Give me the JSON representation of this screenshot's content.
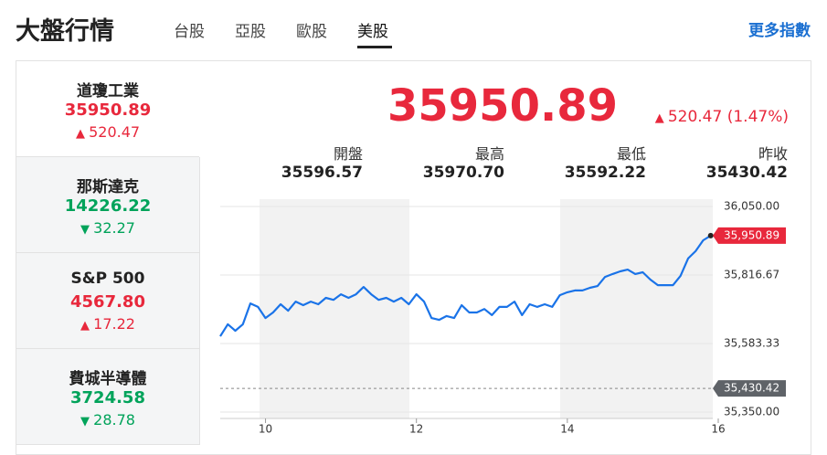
{
  "header": {
    "title": "大盤行情",
    "tabs": [
      "台股",
      "亞股",
      "歐股",
      "美股"
    ],
    "active_tab": 3,
    "more_link": "更多指數"
  },
  "index_list": [
    {
      "name": "道瓊工業",
      "value": "35950.89",
      "change": "520.47",
      "direction": "up"
    },
    {
      "name": "那斯達克",
      "value": "14226.22",
      "change": "32.27",
      "direction": "down"
    },
    {
      "name": "S&P 500",
      "value": "4567.80",
      "change": "17.22",
      "direction": "up"
    },
    {
      "name": "費城半導體",
      "value": "3724.58",
      "change": "28.78",
      "direction": "down"
    }
  ],
  "selected_index": 0,
  "summary": {
    "value": "35950.89",
    "change": "520.47 (1.47%)",
    "direction": "up",
    "stats": [
      {
        "label": "開盤",
        "value": "35596.57"
      },
      {
        "label": "最高",
        "value": "35970.70"
      },
      {
        "label": "最低",
        "value": "35592.22"
      },
      {
        "label": "昨收",
        "value": "35430.42"
      }
    ]
  },
  "chart_data": {
    "type": "line",
    "color": "#1a73e8",
    "x": [
      9.4,
      9.5,
      9.6,
      9.7,
      9.8,
      9.9,
      10.0,
      10.1,
      10.2,
      10.3,
      10.4,
      10.5,
      10.6,
      10.7,
      10.8,
      10.9,
      11.0,
      11.1,
      11.2,
      11.3,
      11.4,
      11.5,
      11.6,
      11.7,
      11.8,
      11.9,
      12.0,
      12.1,
      12.2,
      12.3,
      12.4,
      12.5,
      12.6,
      12.7,
      12.8,
      12.9,
      13.0,
      13.1,
      13.2,
      13.3,
      13.4,
      13.5,
      13.6,
      13.7,
      13.8,
      13.9,
      14.0,
      14.1,
      14.2,
      14.3,
      14.4,
      14.5,
      14.6,
      14.7,
      14.8,
      14.9,
      15.0,
      15.1,
      15.2,
      15.3,
      15.4,
      15.5,
      15.6,
      15.7,
      15.8,
      15.9
    ],
    "values": [
      35608,
      35649,
      35627,
      35649,
      35720,
      35708,
      35670,
      35689,
      35717,
      35695,
      35726,
      35714,
      35726,
      35717,
      35739,
      35732,
      35751,
      35739,
      35751,
      35776,
      35751,
      35732,
      35739,
      35726,
      35739,
      35717,
      35751,
      35726,
      35670,
      35664,
      35677,
      35670,
      35714,
      35689,
      35689,
      35701,
      35680,
      35708,
      35708,
      35726,
      35680,
      35717,
      35708,
      35717,
      35708,
      35748,
      35758,
      35764,
      35764,
      35773,
      35779,
      35810,
      35820,
      35829,
      35835,
      35820,
      35826,
      35801,
      35782,
      35782,
      35782,
      35814,
      35873,
      35898,
      35935,
      35950.89
    ],
    "value_labels": [
      null,
      null,
      null,
      null,
      null,
      null,
      null,
      null,
      null,
      null,
      null,
      null,
      null,
      null,
      null,
      null,
      null,
      null,
      null,
      null,
      null,
      null,
      null,
      null,
      null,
      null,
      null,
      null,
      null,
      null,
      null,
      null,
      null,
      null,
      null,
      null,
      null,
      null,
      null,
      null,
      null,
      null,
      null,
      null,
      null,
      null,
      null,
      null,
      null,
      null,
      null,
      null,
      null,
      null,
      null,
      null,
      null,
      null,
      null,
      null,
      null,
      null,
      null,
      null,
      null,
      "35,950.89"
    ],
    "xlim": [
      9.4,
      16
    ],
    "xticks": [
      10,
      12,
      14,
      16
    ],
    "ylim": [
      35350,
      36050
    ],
    "yticks": [
      {
        "value": 36050,
        "label": "36,050.00"
      },
      {
        "value": 35816.67,
        "label": "35,816.67"
      },
      {
        "value": 35583.33,
        "label": "35,583.33"
      },
      {
        "value": 35350,
        "label": "35,350.00"
      }
    ],
    "reference_line": {
      "value": 35430.42,
      "label": "35,430.42"
    },
    "grid": true
  }
}
